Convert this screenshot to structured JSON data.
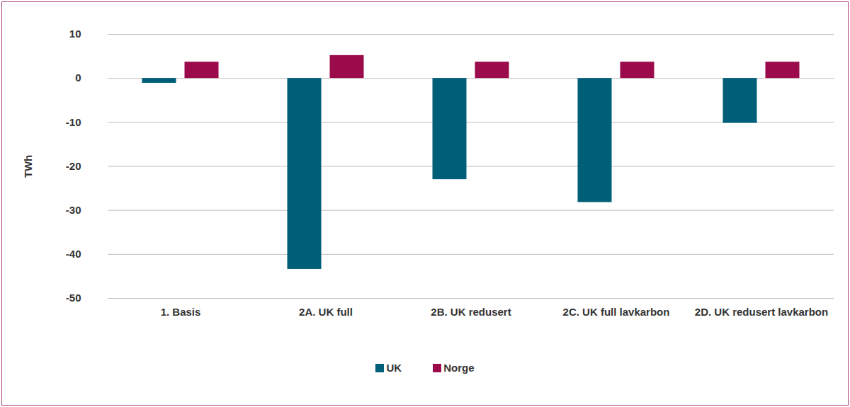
{
  "chart_data": {
    "type": "bar",
    "ylabel": "TWh",
    "categories": [
      "1. Basis",
      "2A. UK full",
      "2B. UK redusert",
      "2C. UK full lavkarbon",
      "2D. UK redusert lavkarbon"
    ],
    "series": [
      {
        "name": "UK",
        "color": "#005f78",
        "values": [
          -1.1,
          -43.4,
          -23,
          -28.2,
          -10.2
        ]
      },
      {
        "name": "Norge",
        "color": "#9b0a4a",
        "values": [
          3.7,
          5.2,
          3.7,
          3.7,
          3.7
        ]
      }
    ],
    "ylim": [
      -50,
      10
    ],
    "yticks": [
      -50,
      -40,
      -30,
      -20,
      -10,
      0,
      10
    ],
    "grid": true,
    "legend": "bottom"
  }
}
